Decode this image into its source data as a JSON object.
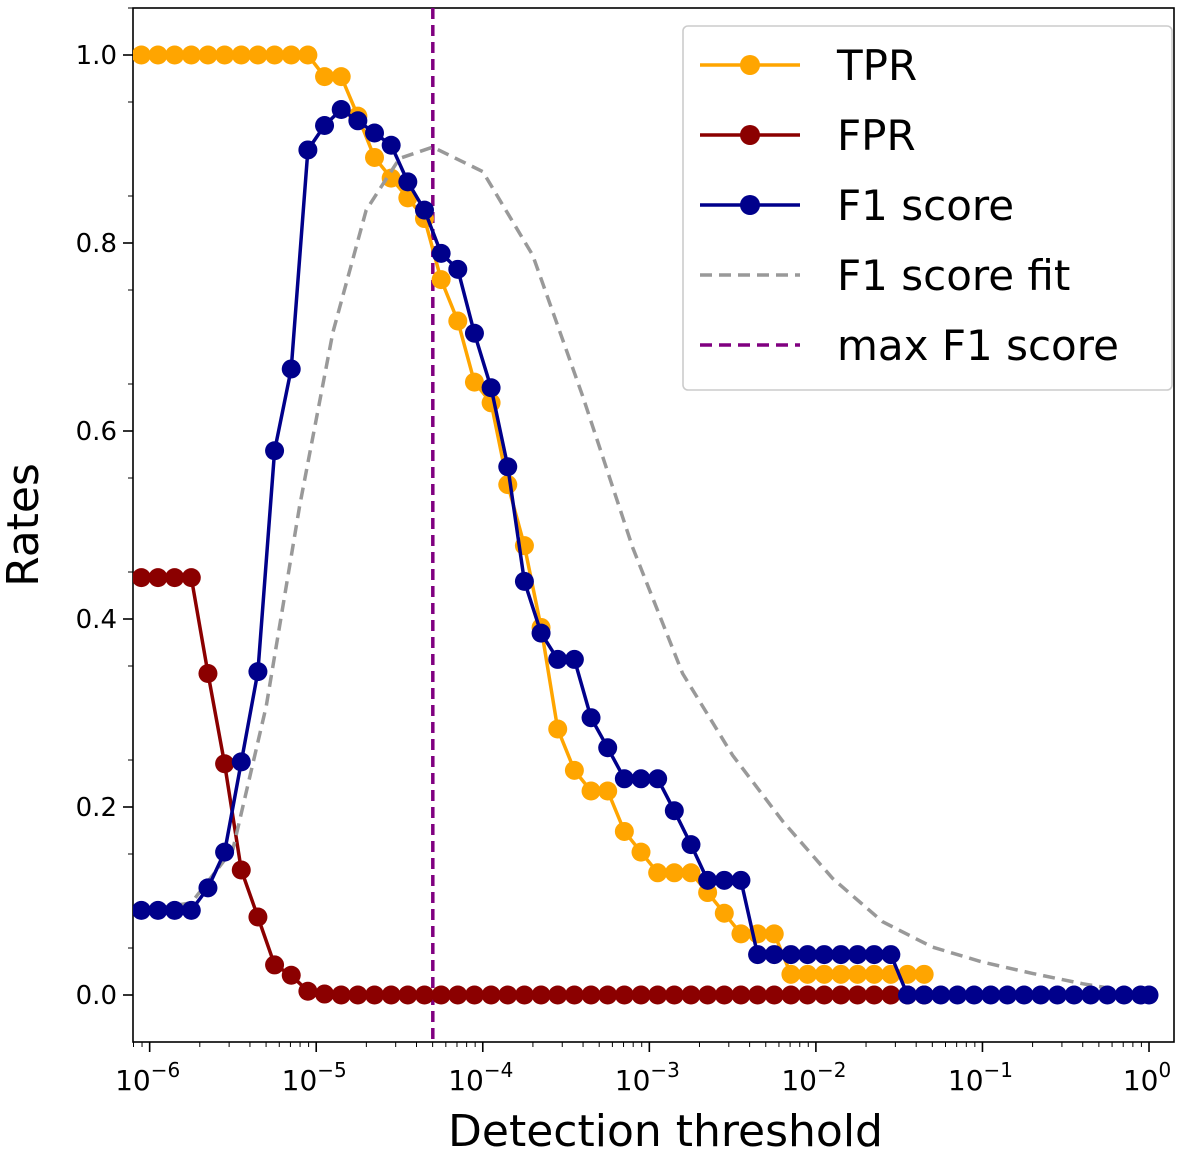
{
  "chart_data": {
    "type": "line",
    "xscale": "log",
    "xlabel": "Detection threshold",
    "ylabel": "Rates",
    "xlim_exp": [
      -6.1,
      0.15
    ],
    "ylim": [
      -0.05,
      1.05
    ],
    "yticks": [
      0.0,
      0.2,
      0.4,
      0.6,
      0.8,
      1.0
    ],
    "ytick_labels": [
      "0.0",
      "0.2",
      "0.4",
      "0.6",
      "0.8",
      "1.0"
    ],
    "xtick_exponents": [
      -6,
      -5,
      -4,
      -3,
      -2,
      -1,
      0
    ],
    "xtick_base": "10",
    "xtick_labels": [
      "−6",
      "−5",
      "−4",
      "−3",
      "−2",
      "−1",
      "0"
    ],
    "legend_position": "top-right",
    "x_exp": [
      -6.05,
      -5.95,
      -5.85,
      -5.75,
      -5.65,
      -5.55,
      -5.45,
      -5.35,
      -5.25,
      -5.15,
      -5.05,
      -4.95,
      -4.85,
      -4.75,
      -4.65,
      -4.55,
      -4.45,
      -4.35,
      -4.25,
      -4.15,
      -4.05,
      -3.95,
      -3.85,
      -3.75,
      -3.65,
      -3.55,
      -3.45,
      -3.35,
      -3.25,
      -3.15,
      -3.05,
      -2.95,
      -2.85,
      -2.75,
      -2.65,
      -2.55,
      -2.45,
      -2.35,
      -2.25,
      -2.15,
      -2.05,
      -1.95,
      -1.85,
      -1.75,
      -1.65,
      -1.55,
      -1.45,
      -1.35,
      -1.25,
      -1.15,
      -1.05,
      -0.95,
      -0.85,
      -0.75,
      -0.65,
      -0.55,
      -0.45,
      -0.35,
      -0.25,
      -0.15,
      -0.05,
      0.0
    ],
    "series": [
      {
        "name": "TPR",
        "color": "#FFA500",
        "style": "line-marker",
        "values": [
          1.0,
          1.0,
          1.0,
          1.0,
          1.0,
          1.0,
          1.0,
          1.0,
          1.0,
          1.0,
          1.0,
          0.977,
          0.977,
          0.935,
          0.891,
          0.869,
          0.848,
          0.826,
          0.761,
          0.717,
          0.652,
          0.63,
          0.543,
          0.478,
          0.391,
          0.283,
          0.239,
          0.217,
          0.217,
          0.174,
          0.152,
          0.13,
          0.13,
          0.13,
          0.109,
          0.087,
          0.065,
          0.065,
          0.065,
          0.022,
          0.022,
          0.022,
          0.022,
          0.022,
          0.022,
          0.022,
          0.022,
          0.022,
          null,
          null,
          null,
          null,
          null,
          null,
          null,
          null,
          null,
          null,
          null,
          null,
          null,
          null
        ]
      },
      {
        "name": "FPR",
        "color": "#8B0000",
        "style": "line-marker",
        "values": [
          0.444,
          0.444,
          0.444,
          0.444,
          0.342,
          0.246,
          0.133,
          0.083,
          0.032,
          0.021,
          0.004,
          0.001,
          0.0,
          0.0,
          0.0,
          0.0,
          0.0,
          0.0,
          0.0,
          0.0,
          0.0,
          0.0,
          0.0,
          0.0,
          0.0,
          0.0,
          0.0,
          0.0,
          0.0,
          0.0,
          0.0,
          0.0,
          0.0,
          0.0,
          0.0,
          0.0,
          0.0,
          0.0,
          0.0,
          0.0,
          0.0,
          0.0,
          0.0,
          0.0,
          0.0,
          0.0,
          0.0,
          0.0,
          null,
          null,
          null,
          null,
          null,
          null,
          null,
          null,
          null,
          null,
          null,
          null,
          null,
          null
        ]
      },
      {
        "name": "F1 score",
        "color": "#00008B",
        "style": "line-marker",
        "values": [
          0.09,
          0.09,
          0.09,
          0.09,
          0.114,
          0.152,
          0.248,
          0.344,
          0.579,
          0.666,
          0.899,
          0.925,
          0.942,
          0.93,
          0.917,
          0.904,
          0.865,
          0.835,
          0.789,
          0.772,
          0.704,
          0.646,
          0.562,
          0.44,
          0.385,
          0.357,
          0.357,
          0.295,
          0.263,
          0.23,
          0.23,
          0.23,
          0.196,
          0.16,
          0.122,
          0.122,
          0.122,
          0.043,
          0.043,
          0.043,
          0.043,
          0.043,
          0.043,
          0.043,
          0.043,
          0.043,
          0.0,
          0.0,
          0.0,
          0.0,
          0.0,
          0.0,
          0.0,
          0.0,
          0.0,
          0.0,
          0.0,
          0.0,
          0.0,
          0.0,
          0.0,
          0.0
        ]
      },
      {
        "name": "F1 score fit",
        "color": "#999999",
        "style": "dashed",
        "x_exp": [
          -6.05,
          -5.75,
          -5.5,
          -5.3,
          -5.1,
          -4.9,
          -4.7,
          -4.5,
          -4.3,
          -4.0,
          -3.7,
          -3.4,
          -3.1,
          -2.8,
          -2.5,
          -2.2,
          -1.9,
          -1.6,
          -1.3,
          -1.0,
          -0.7,
          -0.4,
          0.0
        ],
        "values": [
          0.09,
          0.098,
          0.155,
          0.307,
          0.52,
          0.705,
          0.835,
          0.89,
          0.902,
          0.876,
          0.787,
          0.637,
          0.476,
          0.342,
          0.255,
          0.185,
          0.124,
          0.078,
          0.051,
          0.035,
          0.023,
          0.012,
          0.0
        ]
      }
    ],
    "vline": {
      "name": "max F1 score",
      "x_exp": -4.3,
      "color": "#800080",
      "style": "dashed"
    }
  }
}
